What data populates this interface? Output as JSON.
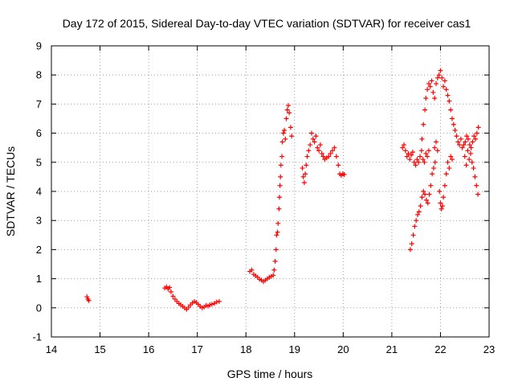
{
  "chart_data": {
    "type": "scatter",
    "title": "Day 172 of 2015, Sidereal Day-to-day VTEC variation (SDTVAR) for receiver cas1",
    "xlabel": "GPS time / hours",
    "ylabel": "SDTVAR / TECUs",
    "xlim": [
      14,
      23
    ],
    "ylim": [
      -1,
      9
    ],
    "xticks": [
      "14",
      "15",
      "16",
      "17",
      "18",
      "19",
      "20",
      "21",
      "22",
      "23"
    ],
    "yticks": [
      "-1",
      "0",
      "1",
      "2",
      "3",
      "4",
      "5",
      "6",
      "7",
      "8",
      "9"
    ],
    "grid": true,
    "marker": "+",
    "color": "#ff0000",
    "series": [
      {
        "name": "SDTVAR",
        "points": [
          [
            14.73,
            0.38
          ],
          [
            14.75,
            0.3
          ],
          [
            14.77,
            0.25
          ],
          [
            16.33,
            0.68
          ],
          [
            16.37,
            0.72
          ],
          [
            16.4,
            0.65
          ],
          [
            16.43,
            0.7
          ],
          [
            16.46,
            0.55
          ],
          [
            16.5,
            0.4
          ],
          [
            16.54,
            0.3
          ],
          [
            16.58,
            0.22
          ],
          [
            16.62,
            0.15
          ],
          [
            16.66,
            0.1
          ],
          [
            16.7,
            0.05
          ],
          [
            16.74,
            0.0
          ],
          [
            16.78,
            -0.05
          ],
          [
            16.82,
            0.02
          ],
          [
            16.86,
            0.1
          ],
          [
            16.9,
            0.17
          ],
          [
            16.94,
            0.22
          ],
          [
            16.98,
            0.18
          ],
          [
            17.02,
            0.12
          ],
          [
            17.06,
            0.05
          ],
          [
            17.1,
            0.0
          ],
          [
            17.14,
            0.03
          ],
          [
            17.18,
            0.08
          ],
          [
            17.22,
            0.06
          ],
          [
            17.26,
            0.1
          ],
          [
            17.3,
            0.12
          ],
          [
            17.35,
            0.15
          ],
          [
            17.4,
            0.2
          ],
          [
            17.45,
            0.22
          ],
          [
            18.08,
            1.25
          ],
          [
            18.12,
            1.3
          ],
          [
            18.16,
            1.15
          ],
          [
            18.2,
            1.1
          ],
          [
            18.24,
            1.05
          ],
          [
            18.28,
            0.98
          ],
          [
            18.32,
            0.95
          ],
          [
            18.36,
            0.9
          ],
          [
            18.4,
            0.95
          ],
          [
            18.44,
            1.0
          ],
          [
            18.48,
            1.05
          ],
          [
            18.52,
            1.08
          ],
          [
            18.56,
            1.12
          ],
          [
            18.58,
            1.3
          ],
          [
            18.6,
            1.6
          ],
          [
            18.62,
            2.0
          ],
          [
            18.63,
            2.5
          ],
          [
            18.65,
            2.6
          ],
          [
            18.66,
            2.9
          ],
          [
            18.68,
            3.4
          ],
          [
            18.69,
            3.8
          ],
          [
            18.7,
            4.2
          ],
          [
            18.71,
            4.5
          ],
          [
            18.72,
            4.9
          ],
          [
            18.74,
            5.2
          ],
          [
            18.75,
            5.7
          ],
          [
            18.77,
            6.0
          ],
          [
            18.79,
            6.1
          ],
          [
            18.81,
            5.8
          ],
          [
            18.83,
            6.5
          ],
          [
            18.85,
            6.8
          ],
          [
            18.87,
            6.95
          ],
          [
            18.89,
            6.7
          ],
          [
            18.92,
            6.2
          ],
          [
            18.94,
            5.9
          ],
          [
            19.16,
            4.8
          ],
          [
            19.18,
            4.5
          ],
          [
            19.2,
            4.3
          ],
          [
            19.22,
            4.6
          ],
          [
            19.24,
            4.9
          ],
          [
            19.26,
            5.2
          ],
          [
            19.29,
            5.4
          ],
          [
            19.32,
            5.6
          ],
          [
            19.35,
            6.0
          ],
          [
            19.38,
            5.8
          ],
          [
            19.41,
            5.7
          ],
          [
            19.44,
            5.9
          ],
          [
            19.47,
            5.5
          ],
          [
            19.5,
            5.4
          ],
          [
            19.53,
            5.6
          ],
          [
            19.56,
            5.3
          ],
          [
            19.59,
            5.2
          ],
          [
            19.62,
            5.1
          ],
          [
            19.66,
            5.15
          ],
          [
            19.7,
            5.2
          ],
          [
            19.74,
            5.3
          ],
          [
            19.78,
            5.4
          ],
          [
            19.82,
            5.5
          ],
          [
            19.86,
            5.2
          ],
          [
            19.9,
            4.9
          ],
          [
            19.93,
            4.6
          ],
          [
            19.96,
            4.55
          ],
          [
            19.99,
            4.6
          ],
          [
            20.02,
            4.58
          ],
          [
            21.22,
            5.5
          ],
          [
            21.25,
            5.6
          ],
          [
            21.28,
            5.4
          ],
          [
            21.31,
            5.2
          ],
          [
            21.34,
            5.3
          ],
          [
            21.37,
            5.1
          ],
          [
            21.4,
            5.25
          ],
          [
            21.43,
            5.35
          ],
          [
            21.46,
            5.0
          ],
          [
            21.49,
            4.9
          ],
          [
            21.52,
            5.1
          ],
          [
            21.55,
            5.0
          ],
          [
            21.58,
            5.2
          ],
          [
            21.61,
            5.4
          ],
          [
            21.64,
            5.1
          ],
          [
            21.67,
            5.0
          ],
          [
            21.7,
            5.3
          ],
          [
            21.73,
            5.2
          ],
          [
            21.76,
            5.4
          ],
          [
            21.38,
            2.0
          ],
          [
            21.41,
            2.2
          ],
          [
            21.44,
            2.5
          ],
          [
            21.47,
            2.8
          ],
          [
            21.5,
            3.0
          ],
          [
            21.53,
            3.2
          ],
          [
            21.56,
            3.3
          ],
          [
            21.59,
            3.5
          ],
          [
            21.62,
            3.8
          ],
          [
            21.65,
            4.0
          ],
          [
            21.68,
            3.9
          ],
          [
            21.71,
            3.7
          ],
          [
            21.74,
            3.6
          ],
          [
            21.77,
            3.9
          ],
          [
            21.8,
            4.2
          ],
          [
            21.83,
            4.6
          ],
          [
            21.86,
            4.8
          ],
          [
            21.89,
            5.0
          ],
          [
            21.62,
            5.8
          ],
          [
            21.65,
            6.3
          ],
          [
            21.68,
            6.8
          ],
          [
            21.7,
            7.2
          ],
          [
            21.73,
            7.5
          ],
          [
            21.76,
            7.7
          ],
          [
            21.79,
            7.6
          ],
          [
            21.82,
            7.8
          ],
          [
            21.85,
            7.4
          ],
          [
            21.88,
            7.2
          ],
          [
            21.91,
            7.7
          ],
          [
            21.94,
            7.9
          ],
          [
            21.97,
            8.0
          ],
          [
            22.0,
            8.15
          ],
          [
            22.03,
            7.9
          ],
          [
            22.06,
            7.6
          ],
          [
            22.09,
            7.8
          ],
          [
            22.12,
            7.5
          ],
          [
            22.15,
            7.3
          ],
          [
            22.18,
            7.1
          ],
          [
            22.21,
            6.8
          ],
          [
            22.24,
            6.5
          ],
          [
            22.27,
            6.3
          ],
          [
            22.3,
            6.1
          ],
          [
            22.33,
            5.9
          ],
          [
            22.36,
            5.7
          ],
          [
            22.39,
            5.6
          ],
          [
            22.42,
            5.8
          ],
          [
            22.45,
            5.5
          ],
          [
            22.48,
            5.6
          ],
          [
            22.51,
            5.7
          ],
          [
            22.54,
            5.9
          ],
          [
            22.57,
            5.8
          ],
          [
            22.6,
            5.6
          ],
          [
            22.63,
            5.5
          ],
          [
            22.66,
            5.7
          ],
          [
            22.69,
            5.9
          ],
          [
            22.72,
            5.8
          ],
          [
            22.75,
            6.0
          ],
          [
            22.78,
            6.2
          ],
          [
            21.98,
            4.0
          ],
          [
            22.0,
            3.6
          ],
          [
            22.02,
            3.4
          ],
          [
            22.04,
            3.5
          ],
          [
            22.06,
            3.8
          ],
          [
            22.09,
            4.2
          ],
          [
            22.12,
            4.6
          ],
          [
            22.15,
            5.0
          ],
          [
            22.18,
            4.8
          ],
          [
            22.21,
            5.2
          ],
          [
            22.24,
            5.1
          ],
          [
            21.88,
            5.5
          ],
          [
            21.91,
            5.7
          ],
          [
            21.94,
            5.4
          ],
          [
            22.5,
            5.2
          ],
          [
            22.53,
            4.9
          ],
          [
            22.56,
            5.4
          ],
          [
            22.59,
            5.1
          ],
          [
            22.62,
            5.3
          ],
          [
            22.65,
            5.0
          ],
          [
            22.68,
            4.8
          ],
          [
            22.71,
            4.5
          ],
          [
            22.74,
            4.2
          ],
          [
            22.77,
            3.9
          ]
        ]
      }
    ]
  }
}
